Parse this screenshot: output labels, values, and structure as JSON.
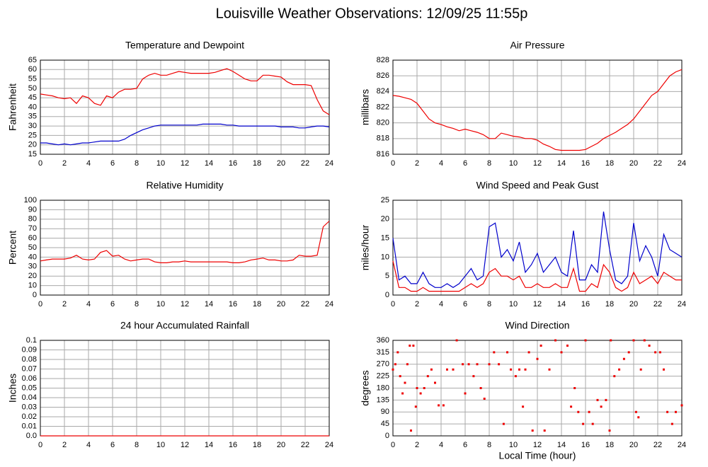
{
  "title": "Louisville Weather Observations: 12/09/25 11:55p",
  "chart_data": [
    {
      "type": "line",
      "title": "Temperature and Dewpoint",
      "ylabel": "Fahrenheit",
      "xlim": [
        0,
        24
      ],
      "xticks": [
        0,
        2,
        4,
        6,
        8,
        10,
        12,
        14,
        16,
        18,
        20,
        22,
        24
      ],
      "ylim": [
        15,
        65
      ],
      "yticks": [
        15,
        20,
        25,
        30,
        35,
        40,
        45,
        50,
        55,
        60,
        65
      ],
      "grid": true,
      "x": [
        0,
        0.5,
        1,
        1.5,
        2,
        2.5,
        3,
        3.5,
        4,
        4.5,
        5,
        5.5,
        6,
        6.5,
        7,
        7.5,
        8,
        8.5,
        9,
        9.5,
        10,
        10.5,
        11,
        11.5,
        12,
        12.5,
        13,
        13.5,
        14,
        14.5,
        15,
        15.5,
        16,
        16.5,
        17,
        17.5,
        18,
        18.5,
        19,
        19.5,
        20,
        20.5,
        21,
        21.5,
        22,
        22.5,
        23,
        23.5,
        24
      ],
      "series": [
        {
          "color": "#ee0000",
          "values": [
            47,
            46.5,
            46,
            45,
            44.5,
            45,
            42,
            46,
            45,
            42,
            41,
            46,
            45,
            48,
            49.5,
            49.5,
            50,
            55,
            57,
            58,
            57,
            57,
            58,
            59,
            58.5,
            58,
            58,
            58,
            58,
            58.5,
            59.5,
            60.5,
            59,
            57,
            55,
            54,
            54,
            57,
            57,
            56.5,
            56,
            53.5,
            52,
            52,
            52,
            51.5,
            44,
            38,
            36
          ]
        },
        {
          "color": "#0000cc",
          "values": [
            21,
            21,
            20.5,
            20,
            20.5,
            20,
            20.5,
            21,
            21,
            21.5,
            22,
            22,
            22,
            22,
            23,
            25,
            26.5,
            28,
            29,
            30,
            30.5,
            30.5,
            30.5,
            30.5,
            30.5,
            30.5,
            30.5,
            31,
            31,
            31,
            31,
            30.5,
            30.5,
            30,
            30,
            30,
            30,
            30,
            30,
            30,
            29.5,
            29.5,
            29.5,
            29,
            29,
            29.5,
            30,
            30,
            29.5
          ]
        }
      ]
    },
    {
      "type": "line",
      "title": "Air Pressure",
      "ylabel": "millibars",
      "xlim": [
        0,
        24
      ],
      "xticks": [
        0,
        2,
        4,
        6,
        8,
        10,
        12,
        14,
        16,
        18,
        20,
        22,
        24
      ],
      "ylim": [
        816,
        828
      ],
      "yticks": [
        816,
        818,
        820,
        822,
        824,
        826,
        828
      ],
      "grid": true,
      "x": [
        0,
        0.5,
        1,
        1.5,
        2,
        2.5,
        3,
        3.5,
        4,
        4.5,
        5,
        5.5,
        6,
        6.5,
        7,
        7.5,
        8,
        8.5,
        9,
        9.5,
        10,
        10.5,
        11,
        11.5,
        12,
        12.5,
        13,
        13.5,
        14,
        14.5,
        15,
        15.5,
        16,
        16.5,
        17,
        17.5,
        18,
        18.5,
        19,
        19.5,
        20,
        20.5,
        21,
        21.5,
        22,
        22.5,
        23,
        23.5,
        24
      ],
      "series": [
        {
          "color": "#ee0000",
          "values": [
            823.5,
            823.4,
            823.2,
            823,
            822.5,
            821.5,
            820.5,
            820,
            819.8,
            819.5,
            819.3,
            819,
            819.2,
            819,
            818.8,
            818.5,
            818,
            818,
            818.7,
            818.5,
            818.3,
            818.2,
            818,
            818,
            817.8,
            817.3,
            817,
            816.6,
            816.5,
            816.5,
            816.5,
            816.5,
            816.6,
            817,
            817.4,
            818,
            818.4,
            818.8,
            819.3,
            819.8,
            820.5,
            821.5,
            822.5,
            823.5,
            824,
            825,
            826,
            826.5,
            826.8
          ]
        }
      ]
    },
    {
      "type": "line",
      "title": "Relative Humidity",
      "ylabel": "Percent",
      "xlim": [
        0,
        24
      ],
      "xticks": [
        0,
        2,
        4,
        6,
        8,
        10,
        12,
        14,
        16,
        18,
        20,
        22,
        24
      ],
      "ylim": [
        0,
        100
      ],
      "yticks": [
        0,
        10,
        20,
        30,
        40,
        50,
        60,
        70,
        80,
        90,
        100
      ],
      "grid": true,
      "x": [
        0,
        0.5,
        1,
        1.5,
        2,
        2.5,
        3,
        3.5,
        4,
        4.5,
        5,
        5.5,
        6,
        6.5,
        7,
        7.5,
        8,
        8.5,
        9,
        9.5,
        10,
        10.5,
        11,
        11.5,
        12,
        12.5,
        13,
        13.5,
        14,
        14.5,
        15,
        15.5,
        16,
        16.5,
        17,
        17.5,
        18,
        18.5,
        19,
        19.5,
        20,
        20.5,
        21,
        21.5,
        22,
        22.5,
        23,
        23.5,
        24
      ],
      "series": [
        {
          "color": "#ee0000",
          "values": [
            36,
            37,
            38,
            38,
            38,
            39,
            42,
            38,
            37,
            38,
            45,
            47,
            41,
            42,
            38,
            36,
            37,
            38,
            38,
            35,
            34,
            34,
            35,
            35,
            36,
            35,
            35,
            35,
            35,
            35,
            35,
            35,
            34,
            34,
            35,
            37,
            38,
            39,
            37,
            37,
            36,
            36,
            37,
            42,
            41,
            41,
            42,
            72,
            78
          ]
        }
      ]
    },
    {
      "type": "line",
      "title": "Wind Speed and Peak Gust",
      "ylabel": "miles/hour",
      "xlim": [
        0,
        24
      ],
      "xticks": [
        0,
        2,
        4,
        6,
        8,
        10,
        12,
        14,
        16,
        18,
        20,
        22,
        24
      ],
      "ylim": [
        0,
        25
      ],
      "yticks": [
        0,
        5,
        10,
        15,
        20,
        25
      ],
      "grid": true,
      "x": [
        0,
        0.5,
        1,
        1.5,
        2,
        2.5,
        3,
        3.5,
        4,
        4.5,
        5,
        5.5,
        6,
        6.5,
        7,
        7.5,
        8,
        8.5,
        9,
        9.5,
        10,
        10.5,
        11,
        11.5,
        12,
        12.5,
        13,
        13.5,
        14,
        14.5,
        15,
        15.5,
        16,
        16.5,
        17,
        17.5,
        18,
        18.5,
        19,
        19.5,
        20,
        20.5,
        21,
        21.5,
        22,
        22.5,
        23,
        23.5,
        24
      ],
      "series": [
        {
          "color": "#0000cc",
          "values": [
            15,
            4,
            5,
            3,
            3,
            6,
            3,
            2,
            2,
            3,
            2,
            3,
            5,
            7,
            4,
            5,
            18,
            19,
            10,
            12,
            9,
            14,
            6,
            8,
            11,
            6,
            8,
            10,
            6,
            5,
            17,
            4,
            4,
            8,
            6,
            22,
            12,
            4,
            3,
            5,
            19,
            9,
            13,
            10,
            5,
            16,
            12,
            11,
            10
          ]
        },
        {
          "color": "#ee0000",
          "values": [
            9,
            2,
            2,
            1,
            1,
            2,
            1,
            1,
            1,
            1,
            1,
            1,
            2,
            3,
            2,
            3,
            6,
            7,
            5,
            5,
            4,
            5,
            2,
            2,
            3,
            2,
            2,
            3,
            2,
            2,
            7,
            1,
            1,
            3,
            2,
            8,
            6,
            2,
            1,
            2,
            6,
            3,
            4,
            5,
            3,
            6,
            5,
            4,
            4
          ]
        }
      ]
    },
    {
      "type": "line",
      "title": "24 hour Accumulated Rainfall",
      "ylabel": "Inches",
      "xlim": [
        0,
        24
      ],
      "xticks": [
        0,
        2,
        4,
        6,
        8,
        10,
        12,
        14,
        16,
        18,
        20,
        22,
        24
      ],
      "ylim": [
        0,
        0.1
      ],
      "yticks": [
        {
          "value": 0,
          "label": "0.0"
        },
        0.01,
        0.02,
        0.03,
        0.04,
        0.05,
        0.06,
        0.07,
        0.08,
        0.09,
        0.1
      ],
      "grid": true,
      "x": [
        0,
        24
      ],
      "series": [
        {
          "color": "#ee0000",
          "values": [
            0,
            0
          ]
        }
      ]
    },
    {
      "type": "scatter",
      "title": "Wind Direction",
      "ylabel": "degrees",
      "xlabel": "Local Time (hour)",
      "xlim": [
        0,
        24
      ],
      "xticks": [
        0,
        2,
        4,
        6,
        8,
        10,
        12,
        14,
        16,
        18,
        20,
        22,
        24
      ],
      "ylim": [
        0,
        360
      ],
      "yticks": [
        0,
        45,
        90,
        135,
        180,
        225,
        270,
        315,
        360
      ],
      "grid": true,
      "x": [
        0,
        0.2,
        0.4,
        0.6,
        0.8,
        1,
        1.2,
        1.4,
        1.5,
        1.7,
        1.9,
        2,
        2.3,
        2.6,
        2.9,
        3.2,
        3.5,
        3.8,
        4.2,
        4.5,
        5,
        5.3,
        5.8,
        6,
        6.3,
        6.7,
        7,
        7.3,
        7.6,
        8,
        8.4,
        8.8,
        9.2,
        9.5,
        9.8,
        10.2,
        10.5,
        10.8,
        11,
        11.3,
        11.6,
        12,
        12.3,
        12.6,
        13,
        13.5,
        14,
        14.5,
        14.8,
        15.1,
        15.4,
        15.8,
        16,
        16.3,
        16.6,
        17,
        17.3,
        17.7,
        18,
        18.1,
        18.4,
        18.8,
        19.2,
        19.6,
        20,
        20.2,
        20.4,
        20.6,
        20.9,
        21.3,
        21.8,
        22.2,
        22.5,
        22.8,
        23.2,
        23.5,
        24
      ],
      "series": [
        {
          "color": "#ee0000",
          "values": [
            250,
            270,
            315,
            225,
            160,
            200,
            270,
            340,
            20,
            340,
            110,
            180,
            160,
            180,
            225,
            250,
            200,
            115,
            115,
            250,
            250,
            360,
            270,
            160,
            270,
            225,
            270,
            180,
            140,
            270,
            315,
            270,
            45,
            315,
            250,
            225,
            250,
            110,
            250,
            315,
            20,
            290,
            340,
            20,
            250,
            360,
            315,
            340,
            110,
            180,
            90,
            45,
            360,
            90,
            45,
            135,
            110,
            135,
            20,
            360,
            225,
            250,
            290,
            315,
            360,
            90,
            70,
            250,
            360,
            340,
            315,
            315,
            250,
            90,
            45,
            90,
            115
          ]
        }
      ]
    }
  ]
}
